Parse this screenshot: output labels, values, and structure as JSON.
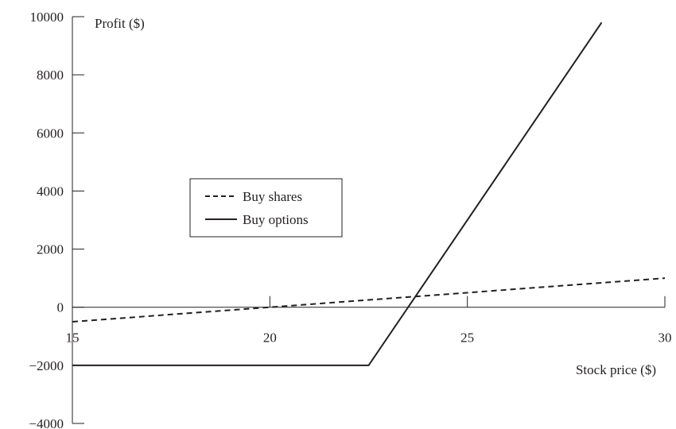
{
  "chart_data": {
    "type": "line",
    "xlabel": "Stock price ($)",
    "ylabel": "Profit ($)",
    "xlim": [
      15,
      30
    ],
    "ylim": [
      -4000,
      10000
    ],
    "x_ticks": [
      15,
      20,
      25,
      30
    ],
    "y_ticks": [
      -4000,
      -2000,
      0,
      2000,
      4000,
      6000,
      8000,
      10000
    ],
    "y_tick_labels": [
      "−4000",
      "−2000",
      "0",
      "2000",
      "4000",
      "6000",
      "8000",
      "10000"
    ],
    "grid": false,
    "legend_position": "center-left",
    "series": [
      {
        "name": "Buy shares",
        "line_style": "dashed",
        "x": [
          15,
          30
        ],
        "y": [
          -500,
          1000
        ]
      },
      {
        "name": "Buy options",
        "line_style": "solid",
        "x": [
          15,
          22.5,
          28.4
        ],
        "y": [
          -2000,
          -2000,
          9800
        ]
      }
    ]
  }
}
